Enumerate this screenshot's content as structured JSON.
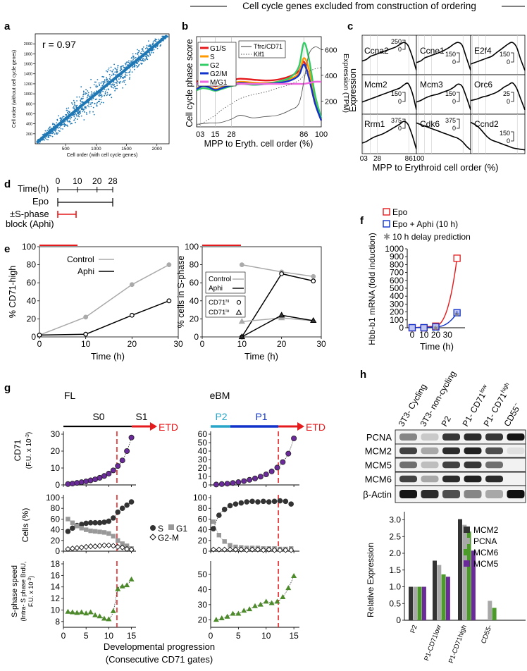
{
  "figure": {
    "header": "Cell cycle genes excluded from construction of ordering",
    "panel_labels": [
      "a",
      "b",
      "c",
      "d",
      "e",
      "f",
      "g",
      "h"
    ]
  },
  "panel_a": {
    "annotation": "r = 0.97",
    "xlabel": "Cell order (with cell cycle genes)",
    "ylabel": "Cell order (without cell cycle genes)",
    "xticks": [
      "500",
      "1000",
      "1500",
      "2000"
    ],
    "yticks": [
      "200",
      "400",
      "600",
      "800",
      "1000",
      "1200",
      "1400",
      "1600",
      "1800",
      "2000"
    ],
    "color": "#1f77b4"
  },
  "panel_b": {
    "ylabel": "Cell cycle phase score",
    "y2label": "Expression (TPM)",
    "xlabel": "MPP to Eryth. cell order (%)",
    "xticks": [
      "03",
      "15",
      "28",
      "86",
      "100"
    ],
    "y2ticks": [
      "200",
      "400",
      "600"
    ],
    "legend1": [
      {
        "name": "G1/S",
        "color": "#e41a1c"
      },
      {
        "name": "S",
        "color": "#ff9900"
      },
      {
        "name": "G2",
        "color": "#33cc66"
      },
      {
        "name": "G2/M",
        "color": "#1133cc"
      },
      {
        "name": "M/G1",
        "color": "#ee66dd"
      }
    ],
    "legend2": [
      {
        "name": "Tfrc/CD71",
        "style": "solid"
      },
      {
        "name": "Klf1",
        "style": "dotted"
      }
    ]
  },
  "panel_c": {
    "ylabel": "Expression",
    "xlabel": "MPP to Erythroid cell order (%)",
    "xticks": [
      "03",
      "28",
      "86",
      "100"
    ],
    "genes": [
      {
        "name": "Ccna2",
        "scale": "250"
      },
      {
        "name": "Ccne1",
        "scale": "150"
      },
      {
        "name": "E2f4",
        "scale": "150"
      },
      {
        "name": "Mcm2",
        "scale": "150"
      },
      {
        "name": "Mcm3",
        "scale": "150"
      },
      {
        "name": "Orc6",
        "scale": "25"
      },
      {
        "name": "Rrm1",
        "scale": "375"
      },
      {
        "name": "Cdk6",
        "scale": "375"
      },
      {
        "name": "Ccnd2",
        "scale": "150"
      }
    ]
  },
  "panel_d": {
    "title": "Time(h)",
    "ticks": [
      "0",
      "10",
      "20",
      "28"
    ],
    "row1": "Epo",
    "row2a": "±S-phase",
    "row2b": "block (Aphi)"
  },
  "panel_e": {
    "left_ylabel": "% CD71-high",
    "right_ylabel": "% cells in S-phase",
    "xlabel": "Time (h)",
    "left_legend": [
      "Control",
      "Aphi"
    ],
    "right_legend": [
      "Control",
      "Aphi"
    ],
    "marker_legend": [
      "CD71",
      "hi",
      "CD71",
      "lo"
    ],
    "xticks": [
      "0",
      "10",
      "20",
      "30"
    ],
    "yticks": [
      "0",
      "20",
      "40",
      "60",
      "80",
      "100"
    ]
  },
  "panel_f": {
    "ylabel": "Hbb-b1 mRNA (fold induction)",
    "xlabel": "Time (h)",
    "legend": [
      "Epo",
      "Epo + Aphi (10 h)",
      "10 h delay prediction"
    ],
    "xticks": [
      "0",
      "10",
      "20",
      "30"
    ],
    "yticks": [
      "0",
      "100",
      "200",
      "300",
      "400",
      "500",
      "600",
      "700",
      "800",
      "900",
      "1000"
    ]
  },
  "panel_g": {
    "left_title": "FL",
    "right_title": "eBM",
    "stage_labels": [
      "S0",
      "S1",
      "P2",
      "P1"
    ],
    "etd_label": "ETD",
    "row1_ylabel": [
      "CD71",
      "(F.U. x 10",
      "-3",
      ")"
    ],
    "row2_ylabel": "Cells (%)",
    "row3_ylabel": [
      "S-phase speed",
      "(Intra- S phase BrdU,",
      "F.U. x 10",
      "-3",
      ")"
    ],
    "legend": [
      "S",
      "G1",
      "G2-M"
    ],
    "xlabel": "Developmental progression",
    "xlabel2": "(Consecutive CD71 gates)",
    "xticks": [
      "0",
      "5",
      "10",
      "15"
    ],
    "fl_row1_yticks": [
      "0",
      "10",
      "20",
      "30"
    ],
    "ebm_row1_yticks": [
      "0",
      "10",
      "20",
      "30",
      "40",
      "50",
      "60"
    ],
    "row2_yticks": [
      "0",
      "20",
      "40",
      "60",
      "80",
      "100"
    ],
    "fl_row3_yticks": [
      "8",
      "10",
      "12",
      "14",
      "16",
      "18"
    ],
    "ebm_row3_yticks": [
      "20",
      "30",
      "40",
      "50"
    ]
  },
  "panel_h": {
    "lanes": [
      "3T3- Cycling",
      "3T3- non-cycling",
      "P2",
      "P1- CD71",
      "P1- CD71",
      "CD55"
    ],
    "lane_sups": [
      "",
      "",
      "",
      "low",
      "high",
      "−"
    ],
    "blots": [
      "PCNA",
      "MCM2",
      "MCM5",
      "MCM6",
      "β-Actin"
    ],
    "ylabel": "Relative Expression",
    "yticks": [
      "0",
      "0.5",
      "1.0",
      "1.5",
      "2.0",
      "2.5",
      "3.0"
    ],
    "categories": [
      "P2",
      "P1-CD71low",
      "P1-CD71high",
      "CD55-"
    ]
  },
  "chart_data": [
    {
      "type": "scatter",
      "panel": "a",
      "title": "",
      "xlabel": "Cell order (with cell cycle genes)",
      "ylabel": "Cell order (without cell cycle genes)",
      "xlim": [
        0,
        2200
      ],
      "ylim": [
        0,
        2200
      ],
      "annotation": "r = 0.97"
    },
    {
      "type": "line",
      "panel": "b",
      "xlabel": "MPP to Eryth. cell order (%)",
      "ylabel": "Cell cycle phase score",
      "y2label": "Expression (TPM)",
      "xlim": [
        0,
        100
      ],
      "y2lim": [
        0,
        700
      ],
      "x": [
        0,
        5,
        10,
        15,
        20,
        28,
        35,
        45,
        55,
        65,
        75,
        82,
        86,
        90,
        95,
        100
      ],
      "series": [
        {
          "name": "G1/S",
          "axis": "left",
          "values": [
            1.05,
            1.1,
            1.0,
            0.95,
            1.0,
            1.08,
            1.12,
            1.1,
            1.08,
            1.1,
            1.18,
            1.3,
            1.52,
            1.15,
            0.55,
            0.15
          ]
        },
        {
          "name": "S",
          "axis": "left",
          "values": [
            0.9,
            0.95,
            0.93,
            0.88,
            0.92,
            1.0,
            1.05,
            1.03,
            1.02,
            1.05,
            1.12,
            1.25,
            1.6,
            1.35,
            0.6,
            0.18
          ]
        },
        {
          "name": "G2",
          "axis": "left",
          "values": [
            0.85,
            0.9,
            0.88,
            0.84,
            0.88,
            0.95,
            1.0,
            0.98,
            1.0,
            1.05,
            1.15,
            1.4,
            1.95,
            1.6,
            0.75,
            0.2
          ]
        },
        {
          "name": "G2/M",
          "axis": "left",
          "values": [
            0.88,
            0.95,
            0.92,
            0.86,
            0.9,
            0.97,
            1.02,
            1.0,
            1.0,
            1.02,
            1.08,
            1.2,
            1.45,
            1.15,
            0.55,
            0.15
          ]
        },
        {
          "name": "M/G1",
          "axis": "left",
          "values": [
            1.0,
            1.0,
            0.97,
            0.97,
            0.98,
            1.0,
            1.0,
            1.0,
            1.0,
            1.0,
            1.0,
            1.0,
            1.0,
            1.02,
            1.05,
            1.05
          ]
        },
        {
          "name": "Tfrc/CD71",
          "axis": "right",
          "values": [
            20,
            25,
            30,
            30,
            35,
            60,
            90,
            70,
            80,
            90,
            130,
            180,
            350,
            560,
            620,
            600
          ]
        },
        {
          "name": "Klf1",
          "axis": "right",
          "values": [
            10,
            30,
            60,
            90,
            130,
            180,
            220,
            250,
            270,
            300,
            330,
            360,
            400,
            430,
            450,
            460
          ]
        }
      ]
    },
    {
      "type": "line",
      "panel": "e-left",
      "xlabel": "Time (h)",
      "ylabel": "% CD71-high",
      "xlim": [
        0,
        30
      ],
      "ylim": [
        0,
        100
      ],
      "x": [
        0,
        10,
        20,
        28
      ],
      "series": [
        {
          "name": "Control",
          "values": [
            2,
            22,
            58,
            80
          ]
        },
        {
          "name": "Aphi",
          "values": [
            2,
            3,
            24,
            40
          ]
        }
      ]
    },
    {
      "type": "line",
      "panel": "e-right",
      "xlabel": "Time (h)",
      "ylabel": "% cells in S-phase",
      "xlim": [
        0,
        30
      ],
      "ylim": [
        0,
        100
      ],
      "series": [
        {
          "name": "Control",
          "marker": "circle",
          "x": [
            10,
            20,
            28
          ],
          "values": [
            80,
            72,
            67
          ]
        },
        {
          "name": "Aphi",
          "marker": "circle",
          "x": [
            10,
            20,
            28
          ],
          "values": [
            0,
            70,
            62
          ]
        },
        {
          "name": "Control",
          "marker": "triangle",
          "x": [
            10,
            20,
            28
          ],
          "values": [
            17,
            21,
            18
          ]
        },
        {
          "name": "Aphi",
          "marker": "triangle",
          "x": [
            10,
            20,
            28
          ],
          "values": [
            0,
            24,
            18
          ]
        }
      ]
    },
    {
      "type": "line",
      "panel": "f",
      "xlabel": "Time (h)",
      "ylabel": "Hbb-b1 mRNA (fold induction)",
      "xlim": [
        0,
        40
      ],
      "ylim": [
        0,
        1000
      ],
      "x": [
        0,
        10,
        20,
        38
      ],
      "series": [
        {
          "name": "Epo",
          "values": [
            0,
            0,
            20,
            880
          ]
        },
        {
          "name": "Epo + Aphi (10 h)",
          "values": [
            0,
            0,
            10,
            190
          ]
        },
        {
          "name": "10 h delay prediction",
          "values": [
            0,
            0,
            5,
            180
          ]
        }
      ]
    },
    {
      "type": "scatter",
      "panel": "g-FL-CD71",
      "ylabel": "CD71",
      "xlim": [
        0,
        16
      ],
      "ylim": [
        0,
        30
      ],
      "x": [
        1,
        2,
        3,
        4,
        5,
        6,
        7,
        8,
        9,
        10,
        11,
        12,
        13,
        14,
        15
      ],
      "values": [
        0.5,
        0.8,
        1.2,
        1.6,
        2.1,
        2.7,
        3.3,
        4.2,
        5.3,
        6.7,
        8.6,
        11.2,
        14.5,
        20,
        28
      ]
    },
    {
      "type": "scatter",
      "panel": "g-eBM-CD71",
      "ylabel": "CD71",
      "xlim": [
        0,
        16
      ],
      "ylim": [
        0,
        60
      ],
      "x": [
        1,
        2,
        3,
        4,
        5,
        6,
        7,
        8,
        9,
        10,
        11,
        12,
        13,
        14,
        15
      ],
      "values": [
        0.5,
        1,
        1.5,
        2.3,
        3.3,
        4.5,
        6,
        7.7,
        9.8,
        12.5,
        16,
        20.5,
        27,
        37,
        55
      ]
    },
    {
      "type": "scatter",
      "panel": "g-FL-cells",
      "ylabel": "Cells (%)",
      "xlim": [
        0,
        16
      ],
      "ylim": [
        0,
        100
      ],
      "x": [
        1,
        2,
        3,
        4,
        5,
        6,
        7,
        8,
        9,
        10,
        11,
        12,
        13,
        14,
        15
      ],
      "series": [
        {
          "name": "S",
          "values": [
            37,
            43,
            48,
            50,
            52,
            53,
            53,
            53,
            54,
            56,
            62,
            73,
            80,
            86,
            92
          ]
        },
        {
          "name": "G1",
          "values": [
            60,
            53,
            47,
            43,
            40,
            38,
            37,
            36,
            35,
            33,
            28,
            20,
            14,
            10,
            5
          ]
        },
        {
          "name": "G2-M",
          "values": [
            4,
            5,
            6,
            7,
            8,
            9,
            9,
            10,
            11,
            11,
            10,
            8,
            7,
            4,
            3
          ]
        }
      ]
    },
    {
      "type": "scatter",
      "panel": "g-eBM-cells",
      "ylabel": "Cells (%)",
      "xlim": [
        0,
        16
      ],
      "ylim": [
        0,
        100
      ],
      "x": [
        0.5,
        1.5,
        2.5,
        3.5,
        4.5,
        5.5,
        6.5,
        7.5,
        8.5,
        9.5,
        10.5,
        11.5,
        12.5,
        13.5,
        14.5
      ],
      "series": [
        {
          "name": "S",
          "values": [
            42,
            67,
            78,
            85,
            88,
            90,
            92,
            93,
            92,
            93,
            92,
            93,
            94,
            93,
            88
          ]
        },
        {
          "name": "G1",
          "values": [
            55,
            30,
            18,
            11,
            8,
            7,
            6,
            6,
            6,
            5,
            5,
            5,
            4,
            4,
            5
          ]
        },
        {
          "name": "G2-M",
          "values": [
            3,
            3,
            3,
            3,
            3,
            3,
            2,
            3,
            3,
            2,
            3,
            2,
            2,
            2,
            2
          ]
        }
      ]
    },
    {
      "type": "scatter",
      "panel": "g-FL-speed",
      "ylabel": "S-phase speed",
      "xlim": [
        0,
        16
      ],
      "ylim": [
        7,
        18
      ],
      "x": [
        1,
        2,
        3,
        4,
        5,
        6,
        7,
        8,
        9,
        10,
        11,
        12,
        13,
        14,
        15
      ],
      "values": [
        9.7,
        9.6,
        9.5,
        9.6,
        9.4,
        9.6,
        9.1,
        8.9,
        8.5,
        8.4,
        9.8,
        13.6,
        14.1,
        14.3,
        15.3
      ]
    },
    {
      "type": "scatter",
      "panel": "g-eBM-speed",
      "ylabel": "S-phase speed",
      "xlim": [
        0,
        16
      ],
      "ylim": [
        15,
        57
      ],
      "x": [
        1,
        2,
        3,
        4,
        5,
        6,
        7,
        8,
        9,
        10,
        11,
        12,
        13,
        14,
        15
      ],
      "values": [
        20,
        21,
        22,
        24,
        24,
        26,
        27,
        29,
        30,
        32,
        31,
        32,
        35,
        41,
        49
      ]
    },
    {
      "type": "bar",
      "panel": "h",
      "ylabel": "Relative Expression",
      "ylim": [
        0,
        3.2
      ],
      "categories": [
        "P2",
        "P1-CD71low",
        "P1-CD71high",
        "CD55-"
      ],
      "series": [
        {
          "name": "MCM2",
          "values": [
            1.0,
            1.78,
            3.02,
            0
          ]
        },
        {
          "name": "PCNA",
          "values": [
            1.0,
            1.65,
            2.85,
            0.58
          ]
        },
        {
          "name": "MCM6",
          "values": [
            1.0,
            1.37,
            2.65,
            0.37
          ]
        },
        {
          "name": "MCM5",
          "values": [
            1.0,
            1.3,
            2.08,
            0
          ]
        }
      ]
    }
  ]
}
